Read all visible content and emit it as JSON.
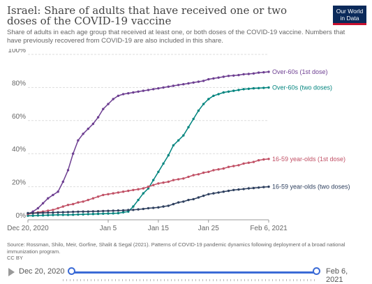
{
  "header": {
    "title": "Israel: Share of adults that have received one or two doses of the COVID-19 vaccine",
    "subtitle": "Share of adults in each age group that received at least one, or both doses of the COVID-19 vaccine. Numbers that have previously recovered from COVID-19 are also included in this share.",
    "logo_line1": "Our World",
    "logo_line2": "in Data"
  },
  "footer": {
    "source": "Source: Rossman, Shilo, Meir, Gorfine, Shalit & Segal (2021). Patterns of COVID-19 pandemic dynamics following deployment of a broad national immunization program.",
    "license": "CC BY"
  },
  "timeline": {
    "start_label": "Dec 20, 2020",
    "end_label": "Feb 6, 2021"
  },
  "colors": {
    "over60_1st": "#6d3e91",
    "over60_2nd": "#00847e",
    "young_1st": "#c15065",
    "young_2nd": "#2d3f5e"
  },
  "chart_data": {
    "type": "line",
    "xlabel": "",
    "ylabel": "",
    "x_range_days": [
      0,
      48
    ],
    "ylim": [
      0,
      100
    ],
    "x_ticks": [
      {
        "day": 0,
        "label": "Dec 20, 2020"
      },
      {
        "day": 16,
        "label": "Jan 5"
      },
      {
        "day": 26,
        "label": "Jan 15"
      },
      {
        "day": 36,
        "label": "Jan 25"
      },
      {
        "day": 48,
        "label": "Feb 6, 2021"
      }
    ],
    "y_ticks": [
      0,
      20,
      40,
      60,
      80,
      100
    ],
    "y_tick_labels": [
      "0%",
      "20%",
      "40%",
      "60%",
      "80%",
      "100%"
    ],
    "grid": "horizontal dashed",
    "series": [
      {
        "name": "Over-60s (1st dose)",
        "color": "#6d3e91",
        "x": [
          0,
          1,
          2,
          3,
          4,
          5,
          6,
          7,
          8,
          9,
          10,
          11,
          12,
          13,
          14,
          15,
          16,
          17,
          18,
          19,
          20,
          21,
          22,
          23,
          24,
          25,
          26,
          27,
          28,
          29,
          30,
          31,
          32,
          33,
          34,
          35,
          36,
          37,
          38,
          39,
          40,
          41,
          42,
          43,
          44,
          45,
          46,
          47,
          48
        ],
        "y": [
          3.5,
          5,
          7,
          10,
          13,
          15,
          17,
          23,
          30,
          40,
          48,
          52,
          55,
          58,
          62,
          67,
          70,
          73,
          75,
          76,
          76.5,
          77,
          77.5,
          78,
          78.5,
          79,
          79.5,
          80,
          80.5,
          81,
          81.5,
          82,
          82.5,
          83,
          83.5,
          84,
          85,
          85.5,
          86,
          86.5,
          87,
          87.2,
          87.5,
          88,
          88.2,
          88.5,
          89,
          89.2,
          89.5
        ]
      },
      {
        "name": "Over-60s (two doses)",
        "color": "#00847e",
        "x": [
          0,
          1,
          2,
          3,
          4,
          5,
          6,
          7,
          8,
          9,
          10,
          11,
          12,
          13,
          14,
          15,
          16,
          17,
          18,
          19,
          20,
          21,
          22,
          23,
          24,
          25,
          26,
          27,
          28,
          29,
          30,
          31,
          32,
          33,
          34,
          35,
          36,
          37,
          38,
          39,
          40,
          41,
          42,
          43,
          44,
          45,
          46,
          47,
          48
        ],
        "y": [
          2.5,
          2.5,
          2.6,
          2.7,
          2.8,
          2.9,
          3,
          3,
          3,
          3.1,
          3.2,
          3.3,
          3.4,
          3.5,
          3.6,
          3.7,
          3.8,
          3.9,
          4,
          4.5,
          5,
          8,
          12,
          16,
          19,
          24,
          29,
          34,
          39,
          45,
          48,
          51,
          56,
          61,
          66,
          70,
          73,
          75,
          76,
          77,
          77.5,
          78,
          78.5,
          79,
          79.2,
          79.5,
          79.6,
          79.8,
          80
        ]
      },
      {
        "name": "16-59 year-olds (1st dose)",
        "color": "#c15065",
        "x": [
          0,
          1,
          2,
          3,
          4,
          5,
          6,
          7,
          8,
          9,
          10,
          11,
          12,
          13,
          14,
          15,
          16,
          17,
          18,
          19,
          20,
          21,
          22,
          23,
          24,
          25,
          26,
          27,
          28,
          29,
          30,
          31,
          32,
          33,
          34,
          35,
          36,
          37,
          38,
          39,
          40,
          41,
          42,
          43,
          44,
          45,
          46,
          47,
          48
        ],
        "y": [
          3.5,
          4,
          4.5,
          5,
          5.5,
          6,
          7,
          8,
          9,
          9.5,
          10.5,
          11,
          12,
          13,
          14,
          15,
          15.5,
          16,
          16.5,
          17,
          17.5,
          18,
          18.5,
          19,
          20,
          21,
          22,
          22.5,
          23,
          24,
          24.5,
          25,
          26,
          27,
          27.5,
          28.5,
          29,
          30,
          30.5,
          31,
          32,
          32.5,
          33,
          34,
          34.5,
          35,
          36,
          36.5,
          36.8
        ]
      },
      {
        "name": "16-59 year-olds (two doses)",
        "color": "#2d3f5e",
        "x": [
          0,
          1,
          2,
          3,
          4,
          5,
          6,
          7,
          8,
          9,
          10,
          11,
          12,
          13,
          14,
          15,
          16,
          17,
          18,
          19,
          20,
          21,
          22,
          23,
          24,
          25,
          26,
          27,
          28,
          29,
          30,
          31,
          32,
          33,
          34,
          35,
          36,
          37,
          38,
          39,
          40,
          41,
          42,
          43,
          44,
          45,
          46,
          47,
          48
        ],
        "y": [
          4,
          4,
          4.1,
          4.2,
          4.3,
          4.4,
          4.5,
          4.6,
          4.7,
          4.8,
          4.9,
          5,
          5,
          5.1,
          5.2,
          5.3,
          5.4,
          5.5,
          5.6,
          5.7,
          5.9,
          6,
          6.3,
          6.6,
          7,
          7.2,
          7.5,
          8,
          8.5,
          9.5,
          10.5,
          11,
          12,
          12.5,
          13.5,
          14.5,
          15.5,
          16,
          16.5,
          17,
          17.5,
          18,
          18.3,
          18.6,
          19,
          19.2,
          19.5,
          19.8,
          20
        ]
      }
    ]
  }
}
